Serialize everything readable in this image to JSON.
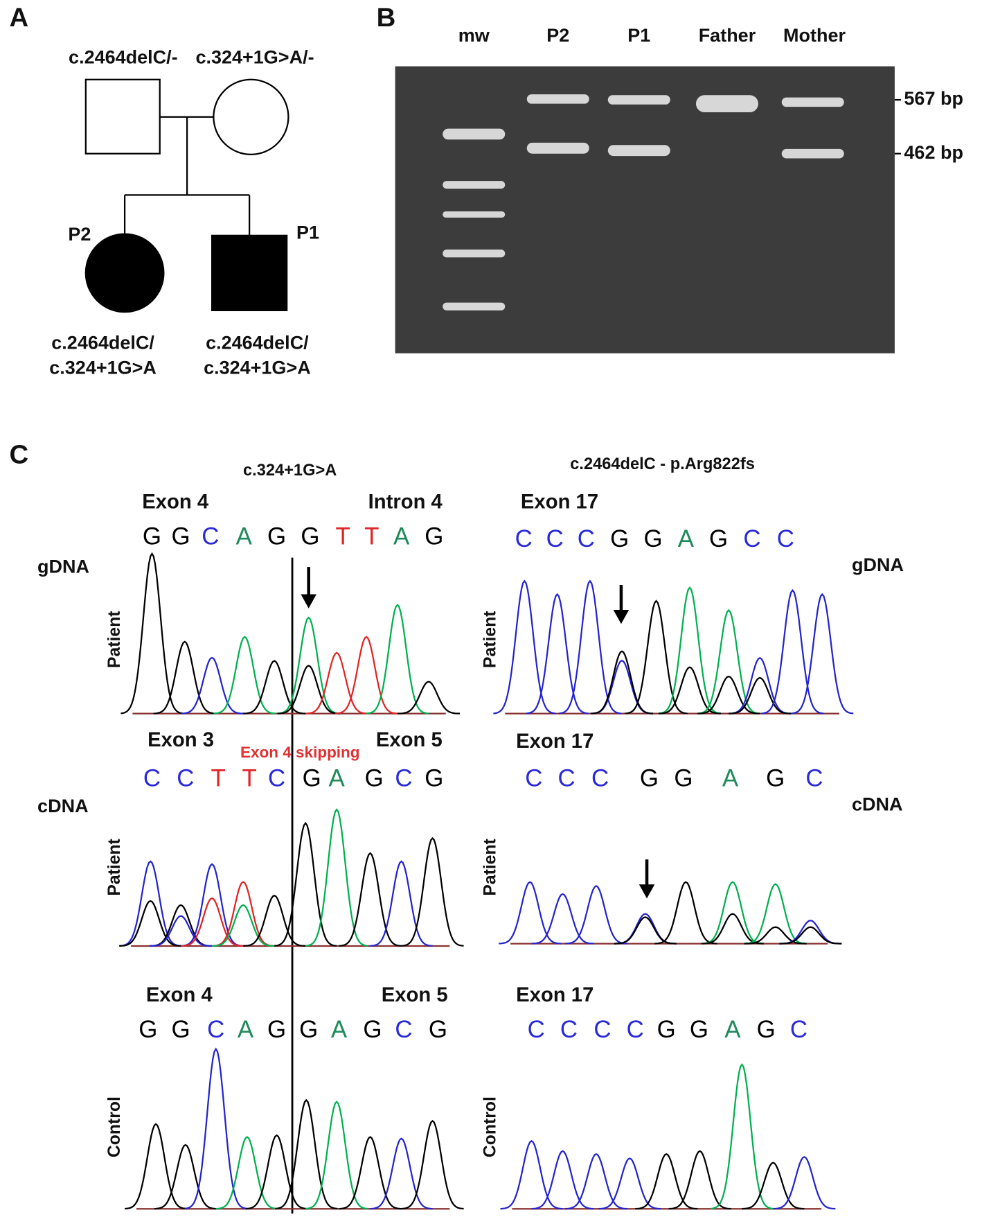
{
  "panel_a": {
    "label": "A",
    "father_genotype": "c.2464delC/-",
    "mother_genotype": "c.324+1G>A/-",
    "children": [
      {
        "id": "P2",
        "genotype": [
          "c.2464delC/",
          "c.324+1G>A"
        ]
      },
      {
        "id": "P1",
        "genotype": [
          "c.2464delC/",
          "c.324+1G>A"
        ]
      }
    ]
  },
  "panel_b": {
    "label": "B",
    "lanes": [
      "mw",
      "P2",
      "P1",
      "Father",
      "Mother"
    ],
    "band_labels": [
      "567 bp",
      "462 bp"
    ]
  },
  "panel_c": {
    "label": "C",
    "left_title": "c.324+1G>A",
    "right_title": "c.2464delC - p.Arg822fs",
    "row_labels": [
      "gDNA",
      "cDNA"
    ],
    "annotation": "Exon 4 skipping",
    "traces": [
      {
        "sample": "Patient",
        "regions": [
          "Exon 4",
          "Intron 4"
        ],
        "bases": [
          "G",
          "G",
          "C",
          "A",
          "G",
          "G",
          "T",
          "T",
          "A",
          "G"
        ]
      },
      {
        "sample": "Patient",
        "regions": [
          "Exon 3",
          "Exon 5"
        ],
        "bases": [
          "C",
          "C",
          "T",
          "T",
          "C",
          "G",
          "A",
          "G",
          "C",
          "G"
        ]
      },
      {
        "sample": "Control",
        "regions": [
          "Exon 4",
          "Exon 5"
        ],
        "bases": [
          "G",
          "G",
          "C",
          "A",
          "G",
          "G",
          "A",
          "G",
          "C",
          "G"
        ]
      },
      {
        "sample": "Patient",
        "regions": [
          "Exon 17"
        ],
        "bases": [
          "C",
          "C",
          "C",
          "G",
          "G",
          "A",
          "G",
          "C",
          "C"
        ]
      },
      {
        "sample": "Patient",
        "regions": [
          "Exon 17"
        ],
        "bases": [
          "C",
          "C",
          "C",
          "G",
          "G",
          "A",
          "G",
          "C"
        ]
      },
      {
        "sample": "Control",
        "regions": [
          "Exon 17"
        ],
        "bases": [
          "C",
          "C",
          "C",
          "C",
          "G",
          "G",
          "A",
          "G",
          "C"
        ]
      }
    ]
  }
}
